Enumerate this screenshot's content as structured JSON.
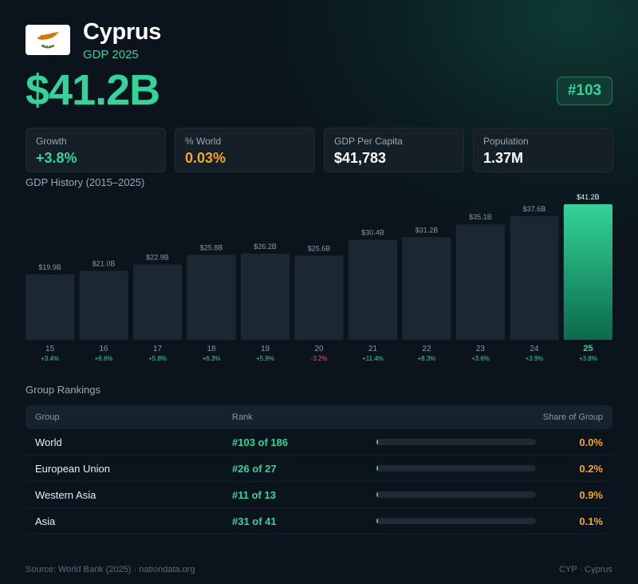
{
  "header": {
    "country": "Cyprus",
    "subtitle": "GDP 2025",
    "gdp_value": "$41.2B",
    "rank_badge": "#103",
    "flag_icon": "cyprus-flag-icon"
  },
  "stats": [
    {
      "label": "Growth",
      "value": "+3.8%",
      "color": "#34d399"
    },
    {
      "label": "% World",
      "value": "0.03%",
      "color": "#f5a623"
    },
    {
      "label": "GDP Per Capita",
      "value": "$41,783",
      "color": "#ffffff"
    },
    {
      "label": "Population",
      "value": "1.37M",
      "color": "#ffffff"
    }
  ],
  "chart_data": {
    "type": "bar",
    "title": "GDP History (2015–2025)",
    "categories": [
      "15",
      "16",
      "17",
      "18",
      "19",
      "20",
      "21",
      "22",
      "23",
      "24",
      "25"
    ],
    "values": [
      19.9,
      21.0,
      22.9,
      25.8,
      26.2,
      25.6,
      30.4,
      31.2,
      35.1,
      37.6,
      41.2
    ],
    "value_labels": [
      "$19.9B",
      "$21.0B",
      "$22.9B",
      "$25.8B",
      "$26.2B",
      "$25.6B",
      "$30.4B",
      "$31.2B",
      "$35.1B",
      "$37.6B",
      "$41.2B"
    ],
    "growth_labels": [
      "+3.4%",
      "+6.6%",
      "+5.8%",
      "+6.3%",
      "+5.9%",
      "-3.2%",
      "+11.4%",
      "+8.3%",
      "+3.6%",
      "+3.9%",
      "+3.8%"
    ],
    "highlight_index": 10,
    "colors": {
      "bar": "#1b2731",
      "highlight_top": "#34d399",
      "highlight_bottom": "#0b6b4a",
      "positive": "#34d399",
      "negative": "#f0506e"
    }
  },
  "rankings": {
    "title": "Group Rankings",
    "headers": {
      "group": "Group",
      "rank": "Rank",
      "share": "Share of Group"
    },
    "rows": [
      {
        "group": "World",
        "rank": "#103 of 186",
        "share": "0.0%",
        "share_value": 0.0
      },
      {
        "group": "European Union",
        "rank": "#26 of 27",
        "share": "0.2%",
        "share_value": 0.2
      },
      {
        "group": "Western Asia",
        "rank": "#11 of 13",
        "share": "0.9%",
        "share_value": 0.9
      },
      {
        "group": "Asia",
        "rank": "#31 of 41",
        "share": "0.1%",
        "share_value": 0.1
      }
    ]
  },
  "footer": {
    "source": "Source: World Bank (2025) · nationdata.org",
    "code": "CYP · Cyprus"
  }
}
